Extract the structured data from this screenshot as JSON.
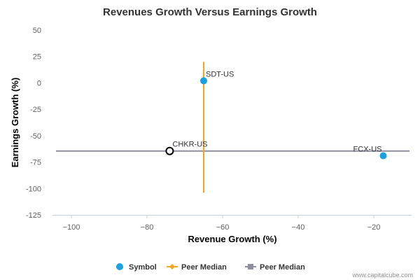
{
  "chart_data": {
    "type": "scatter",
    "title": "Revenues Growth Versus Earnings Growth",
    "xlabel": "Revenue Growth (%)",
    "ylabel": "Earnings Growth (%)",
    "xlim": [
      -105,
      -10
    ],
    "ylim": [
      -125,
      50
    ],
    "x_ticks": [
      -100,
      -80,
      -60,
      -40,
      -20
    ],
    "y_ticks": [
      50,
      25,
      0,
      -25,
      -50,
      -75,
      -100,
      -125
    ],
    "x_tick_labels": [
      "−100",
      "−80",
      "−60",
      "−40",
      "−20"
    ],
    "y_tick_labels": [
      "50",
      "25",
      "0",
      "-25",
      "-50",
      "-75",
      "-100",
      "-125"
    ],
    "points": [
      {
        "label": "SDT-US",
        "x": -65,
        "y": 2,
        "style": "filled"
      },
      {
        "label": "FCX-US",
        "x": -17.5,
        "y": -69,
        "style": "filled"
      },
      {
        "label": "CHKR-US",
        "x": -74,
        "y": -64.5,
        "style": "hollow"
      }
    ],
    "peer_median_revenue": {
      "x": -65,
      "y_from": -104,
      "y_to": 20
    },
    "peer_median_earnings": {
      "y": -64.5
    },
    "legend": [
      {
        "name": "Symbol",
        "marker": "circle",
        "color": "#1aa1e0"
      },
      {
        "name": "Peer Median",
        "marker": "diamond-line",
        "color": "#f5a623"
      },
      {
        "name": "Peer Median",
        "marker": "square-line",
        "color": "#8e8e9e"
      }
    ],
    "legend_position": "bottom-center",
    "grid": false,
    "colors": {
      "symbol": "#1aa1e0",
      "revenue_median": "#f5a623",
      "earnings_median": "#8e8e9e",
      "axis": "#c0d0e0"
    }
  },
  "credit": "www.capitalcube.com"
}
